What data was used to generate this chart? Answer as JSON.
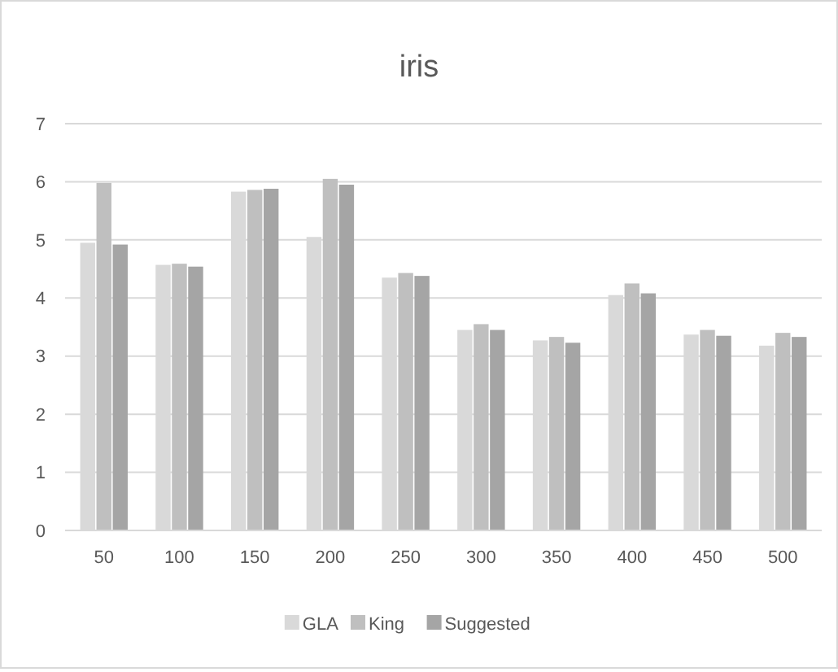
{
  "chart_data": {
    "type": "bar",
    "title": "iris",
    "categories": [
      "50",
      "100",
      "150",
      "200",
      "250",
      "300",
      "350",
      "400",
      "450",
      "500"
    ],
    "series": [
      {
        "name": "GLA",
        "color": "#d9d9d9",
        "values": [
          4.95,
          4.57,
          5.83,
          5.05,
          4.35,
          3.45,
          3.27,
          4.05,
          3.37,
          3.18
        ]
      },
      {
        "name": "King",
        "color": "#bfbfbf",
        "values": [
          5.98,
          4.59,
          5.86,
          6.05,
          4.43,
          3.55,
          3.33,
          4.25,
          3.45,
          3.4
        ]
      },
      {
        "name": "Suggested",
        "color": "#a5a5a5",
        "values": [
          4.92,
          4.54,
          5.88,
          5.95,
          4.38,
          3.45,
          3.23,
          4.08,
          3.35,
          3.33
        ]
      }
    ],
    "ylim": [
      0,
      7
    ],
    "yticks": [
      0,
      1,
      2,
      3,
      4,
      5,
      6,
      7
    ],
    "grid": "y",
    "legend": "bottom"
  }
}
